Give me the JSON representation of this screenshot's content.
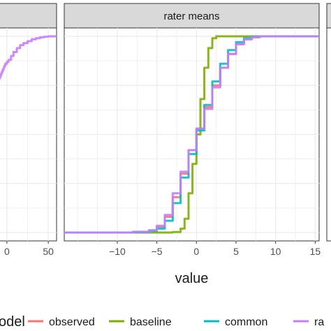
{
  "chart_data": [
    {
      "type": "line",
      "panel": "left",
      "strip_label": "",
      "x_ticks": [
        0,
        50
      ],
      "x_tick_labels": [
        "0",
        "50"
      ],
      "xlim": [
        -10,
        60
      ],
      "ylim": [
        0,
        1
      ],
      "series": [
        {
          "name": "rater",
          "color": "#c77cff",
          "x": [
            -10,
            -9,
            -8,
            -7,
            -6,
            -5,
            -4,
            -3,
            -2,
            0,
            2,
            5,
            8,
            12,
            16,
            20,
            25,
            30,
            35,
            40,
            45,
            50,
            55,
            60
          ],
          "y": [
            0.78,
            0.79,
            0.8,
            0.81,
            0.82,
            0.83,
            0.84,
            0.85,
            0.86,
            0.87,
            0.88,
            0.9,
            0.92,
            0.94,
            0.955,
            0.965,
            0.975,
            0.985,
            0.99,
            0.995,
            0.998,
            1.0,
            1.0,
            1.0
          ]
        }
      ]
    },
    {
      "type": "line",
      "panel": "center",
      "strip_label": "rater means",
      "x_ticks": [
        -10,
        -5,
        0,
        5,
        10,
        15
      ],
      "x_tick_labels": [
        "−10",
        "−5",
        "0",
        "5",
        "10",
        "15"
      ],
      "xlim": [
        -16.7,
        15.5
      ],
      "ylim": [
        0,
        1
      ],
      "series": [
        {
          "name": "observed",
          "color": "#f8766d",
          "x": [
            -16.7,
            -8,
            -6,
            -5,
            -4,
            -3,
            -2,
            -1,
            0,
            1,
            2,
            3,
            4,
            5,
            6,
            7,
            8,
            10,
            15.5
          ],
          "y": [
            0,
            0.003,
            0.01,
            0.03,
            0.08,
            0.18,
            0.3,
            0.42,
            0.53,
            0.64,
            0.75,
            0.84,
            0.91,
            0.96,
            0.985,
            0.995,
            1.0,
            1.0,
            1.0
          ]
        },
        {
          "name": "baseline",
          "color": "#7cae00",
          "x": [
            -16.7,
            -3,
            -2,
            -1.5,
            -1,
            -0.5,
            0,
            0.5,
            1,
            1.5,
            2,
            2.5,
            15.5
          ],
          "y": [
            0,
            0.003,
            0.02,
            0.07,
            0.2,
            0.35,
            0.5,
            0.68,
            0.84,
            0.94,
            0.99,
            1.0,
            1.0
          ]
        },
        {
          "name": "common",
          "color": "#00bfc4",
          "x": [
            -16.7,
            -8,
            -6,
            -5,
            -4,
            -3,
            -2,
            -1,
            0,
            1,
            2,
            3,
            4,
            5,
            6,
            7,
            8,
            10,
            15.5
          ],
          "y": [
            0,
            0.002,
            0.008,
            0.02,
            0.06,
            0.15,
            0.28,
            0.4,
            0.52,
            0.65,
            0.77,
            0.86,
            0.93,
            0.97,
            0.99,
            0.998,
            1.0,
            1.0,
            1.0
          ]
        },
        {
          "name": "rater",
          "color": "#c77cff",
          "x": [
            -16.7,
            -8,
            -6,
            -5,
            -4,
            -3,
            -2,
            -1,
            0,
            1,
            2,
            3,
            4,
            5,
            6,
            7,
            8,
            10,
            15.5
          ],
          "y": [
            0,
            0.004,
            0.012,
            0.035,
            0.09,
            0.2,
            0.31,
            0.42,
            0.53,
            0.63,
            0.74,
            0.84,
            0.91,
            0.96,
            0.985,
            0.996,
            1.0,
            1.0,
            1.0
          ]
        }
      ]
    }
  ],
  "xlabel": "value",
  "legend": {
    "title": "odel",
    "position": "bottom",
    "entries": [
      {
        "label": "observed",
        "color": "#f8766d"
      },
      {
        "label": "baseline",
        "color": "#7cae00"
      },
      {
        "label": "common",
        "color": "#00bfc4"
      },
      {
        "label": "ra",
        "color": "#c77cff"
      }
    ]
  },
  "colors": {
    "panel_background": "#ffffff",
    "grid": "#ebebeb",
    "strip_background": "#d9d9d9",
    "panel_border": "#333333"
  }
}
